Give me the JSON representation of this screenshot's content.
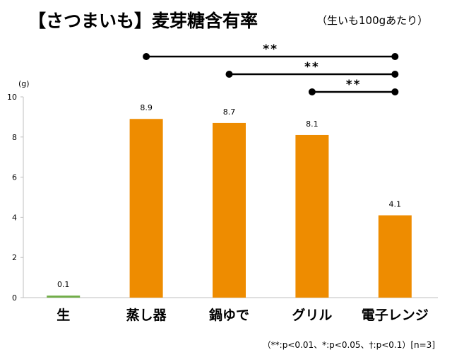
{
  "chart_data": {
    "type": "bar",
    "title": "【さつまいも】麦芽糖含有率",
    "subtitle": "（生いも100gあたり）",
    "ylabel": "(g)",
    "xlabel": "",
    "ylim": [
      0,
      10
    ],
    "yticks": [
      0,
      2,
      4,
      6,
      8,
      10
    ],
    "grid": false,
    "categories": [
      "生",
      "蒸し器",
      "鍋ゆで",
      "グリル",
      "電子レンジ"
    ],
    "values": [
      0.1,
      8.9,
      8.7,
      8.1,
      4.1
    ],
    "data_labels": [
      "0.1",
      "8.9",
      "8.7",
      "8.1",
      "4.1"
    ],
    "colors": {
      "raw": "#70ad47",
      "cooked": "#ee8c00",
      "axis": "#bfbfbf",
      "bracket": "#000000"
    },
    "significance": [
      {
        "from": "蒸し器",
        "to": "電子レンジ",
        "label": "**"
      },
      {
        "from": "鍋ゆで",
        "to": "電子レンジ",
        "label": "**"
      },
      {
        "from": "グリル",
        "to": "電子レンジ",
        "label": "**"
      }
    ],
    "footnote": "（**:p<0.01、*:p<0.05、†:p<0.1）[n=3]"
  }
}
